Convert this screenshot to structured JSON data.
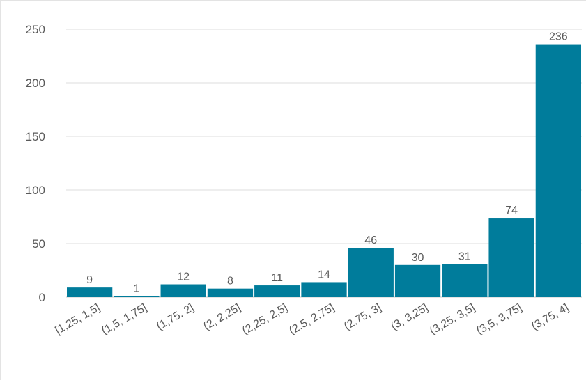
{
  "chart_data": {
    "type": "bar",
    "title": "",
    "xlabel": "",
    "ylabel": "",
    "categories": [
      "[1,25, 1,5]",
      "(1,5, 1,75]",
      "(1,75, 2]",
      "(2, 2,25]",
      "(2,25, 2,5]",
      "(2,5, 2,75]",
      "(2,75, 3]",
      "(3, 3,25]",
      "(3,25, 3,5]",
      "(3,5, 3,75]",
      "(3,75, 4]"
    ],
    "values": [
      9,
      1,
      12,
      8,
      11,
      14,
      46,
      30,
      31,
      74,
      236
    ],
    "ylim": [
      0,
      250
    ],
    "yticks": [
      0,
      50,
      100,
      150,
      200,
      250
    ],
    "grid": true,
    "legend": "none",
    "bar_color": "#007c9b",
    "grid_color": "#dedede",
    "text_color": "#595959"
  }
}
